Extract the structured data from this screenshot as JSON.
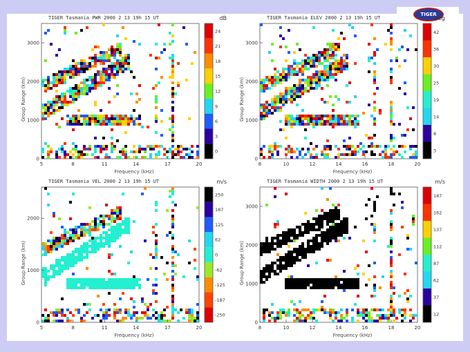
{
  "logo": {
    "text": "TIGER"
  },
  "colors": {
    "background": "#ccccf4",
    "slide": "#ffffff",
    "palette_rainbow": [
      "#000000",
      "#2a00a0",
      "#1e5cff",
      "#22d8f0",
      "#22f0d0",
      "#6af020",
      "#ffd000",
      "#ff8c00",
      "#ff3300",
      "#e00000"
    ],
    "palette_velocity": [
      "#e00000",
      "#ff4400",
      "#ff8c00",
      "#9ae82a",
      "#22f0d0",
      "#22d8f0",
      "#1e5cff",
      "#2a00a0",
      "#000000"
    ],
    "palette_width": [
      "#000000",
      "#2a00a0",
      "#1e5cff",
      "#22d8f0",
      "#22f0d0",
      "#6af020",
      "#ffd000",
      "#ff8c00",
      "#ff3300",
      "#e00000"
    ]
  },
  "chart_data": [
    {
      "type": "heatmap",
      "id": "power",
      "title": "TIGER Tasmania PWR 2000 2 13 19h 15 UT",
      "unit": "dB",
      "xlabel": "Frequency (kHz)",
      "ylabel": "Group Range (km)",
      "xticks": [
        "5",
        "8",
        "11",
        "14",
        "17",
        "20"
      ],
      "yticks": [
        "0",
        "1000",
        "2000",
        "3000"
      ],
      "ylim": [
        0,
        3500
      ],
      "colorbar": {
        "labels": [
          "24",
          "21",
          "18",
          "15",
          "12",
          "9",
          "6",
          "3",
          "0"
        ],
        "palette": "palette_rainbow",
        "top_is_max": true
      }
    },
    {
      "type": "heatmap",
      "id": "elevation",
      "title": "TIGER Tasmania ELEV 2000 2 13 19h 15 UT",
      "unit": "Deg",
      "xlabel": "Frequency (kHz)",
      "ylabel": "Group Range (km)",
      "xticks": [
        "8",
        "10",
        "12",
        "14",
        "16",
        "18",
        "20"
      ],
      "yticks": [
        "0",
        "1000",
        "2000",
        "3000"
      ],
      "ylim": [
        0,
        3500
      ],
      "colorbar": {
        "labels": [
          "42",
          "36",
          "30",
          "25",
          "19",
          "14",
          "8",
          "3"
        ],
        "palette": "palette_rainbow",
        "top_is_max": true
      }
    },
    {
      "type": "heatmap",
      "id": "velocity",
      "title": "TIGER Tasmania VEL 2000 2 13 19h 15 UT",
      "unit": "m/s",
      "xlabel": "Frequency (kHz)",
      "ylabel": "Group Range (km)",
      "xticks": [
        "5",
        "8",
        "11",
        "14",
        "17",
        "20"
      ],
      "yticks": [
        "0",
        "1000",
        "2000"
      ],
      "ylim": [
        0,
        2600
      ],
      "colorbar": {
        "labels": [
          "250",
          "187",
          "125",
          "62",
          "0",
          "-62",
          "-125",
          "-187",
          "-250"
        ],
        "palette": "palette_velocity",
        "top_is_max": true
      }
    },
    {
      "type": "heatmap",
      "id": "width",
      "title": "TIGER Tasmania WIDTH 2000 2 13 19h 15 UT",
      "unit": "m/s",
      "xlabel": "Frequency (kHz)",
      "ylabel": "Group Range (km)",
      "xticks": [
        "8",
        "10",
        "12",
        "14",
        "16",
        "18",
        "20"
      ],
      "yticks": [
        "0",
        "1000",
        "2000",
        "3000"
      ],
      "ylim": [
        0,
        3500
      ],
      "colorbar": {
        "labels": [
          "187",
          "162",
          "137",
          "112",
          "87",
          "62",
          "37",
          "12"
        ],
        "palette": "palette_width",
        "top_is_max": true
      }
    }
  ]
}
